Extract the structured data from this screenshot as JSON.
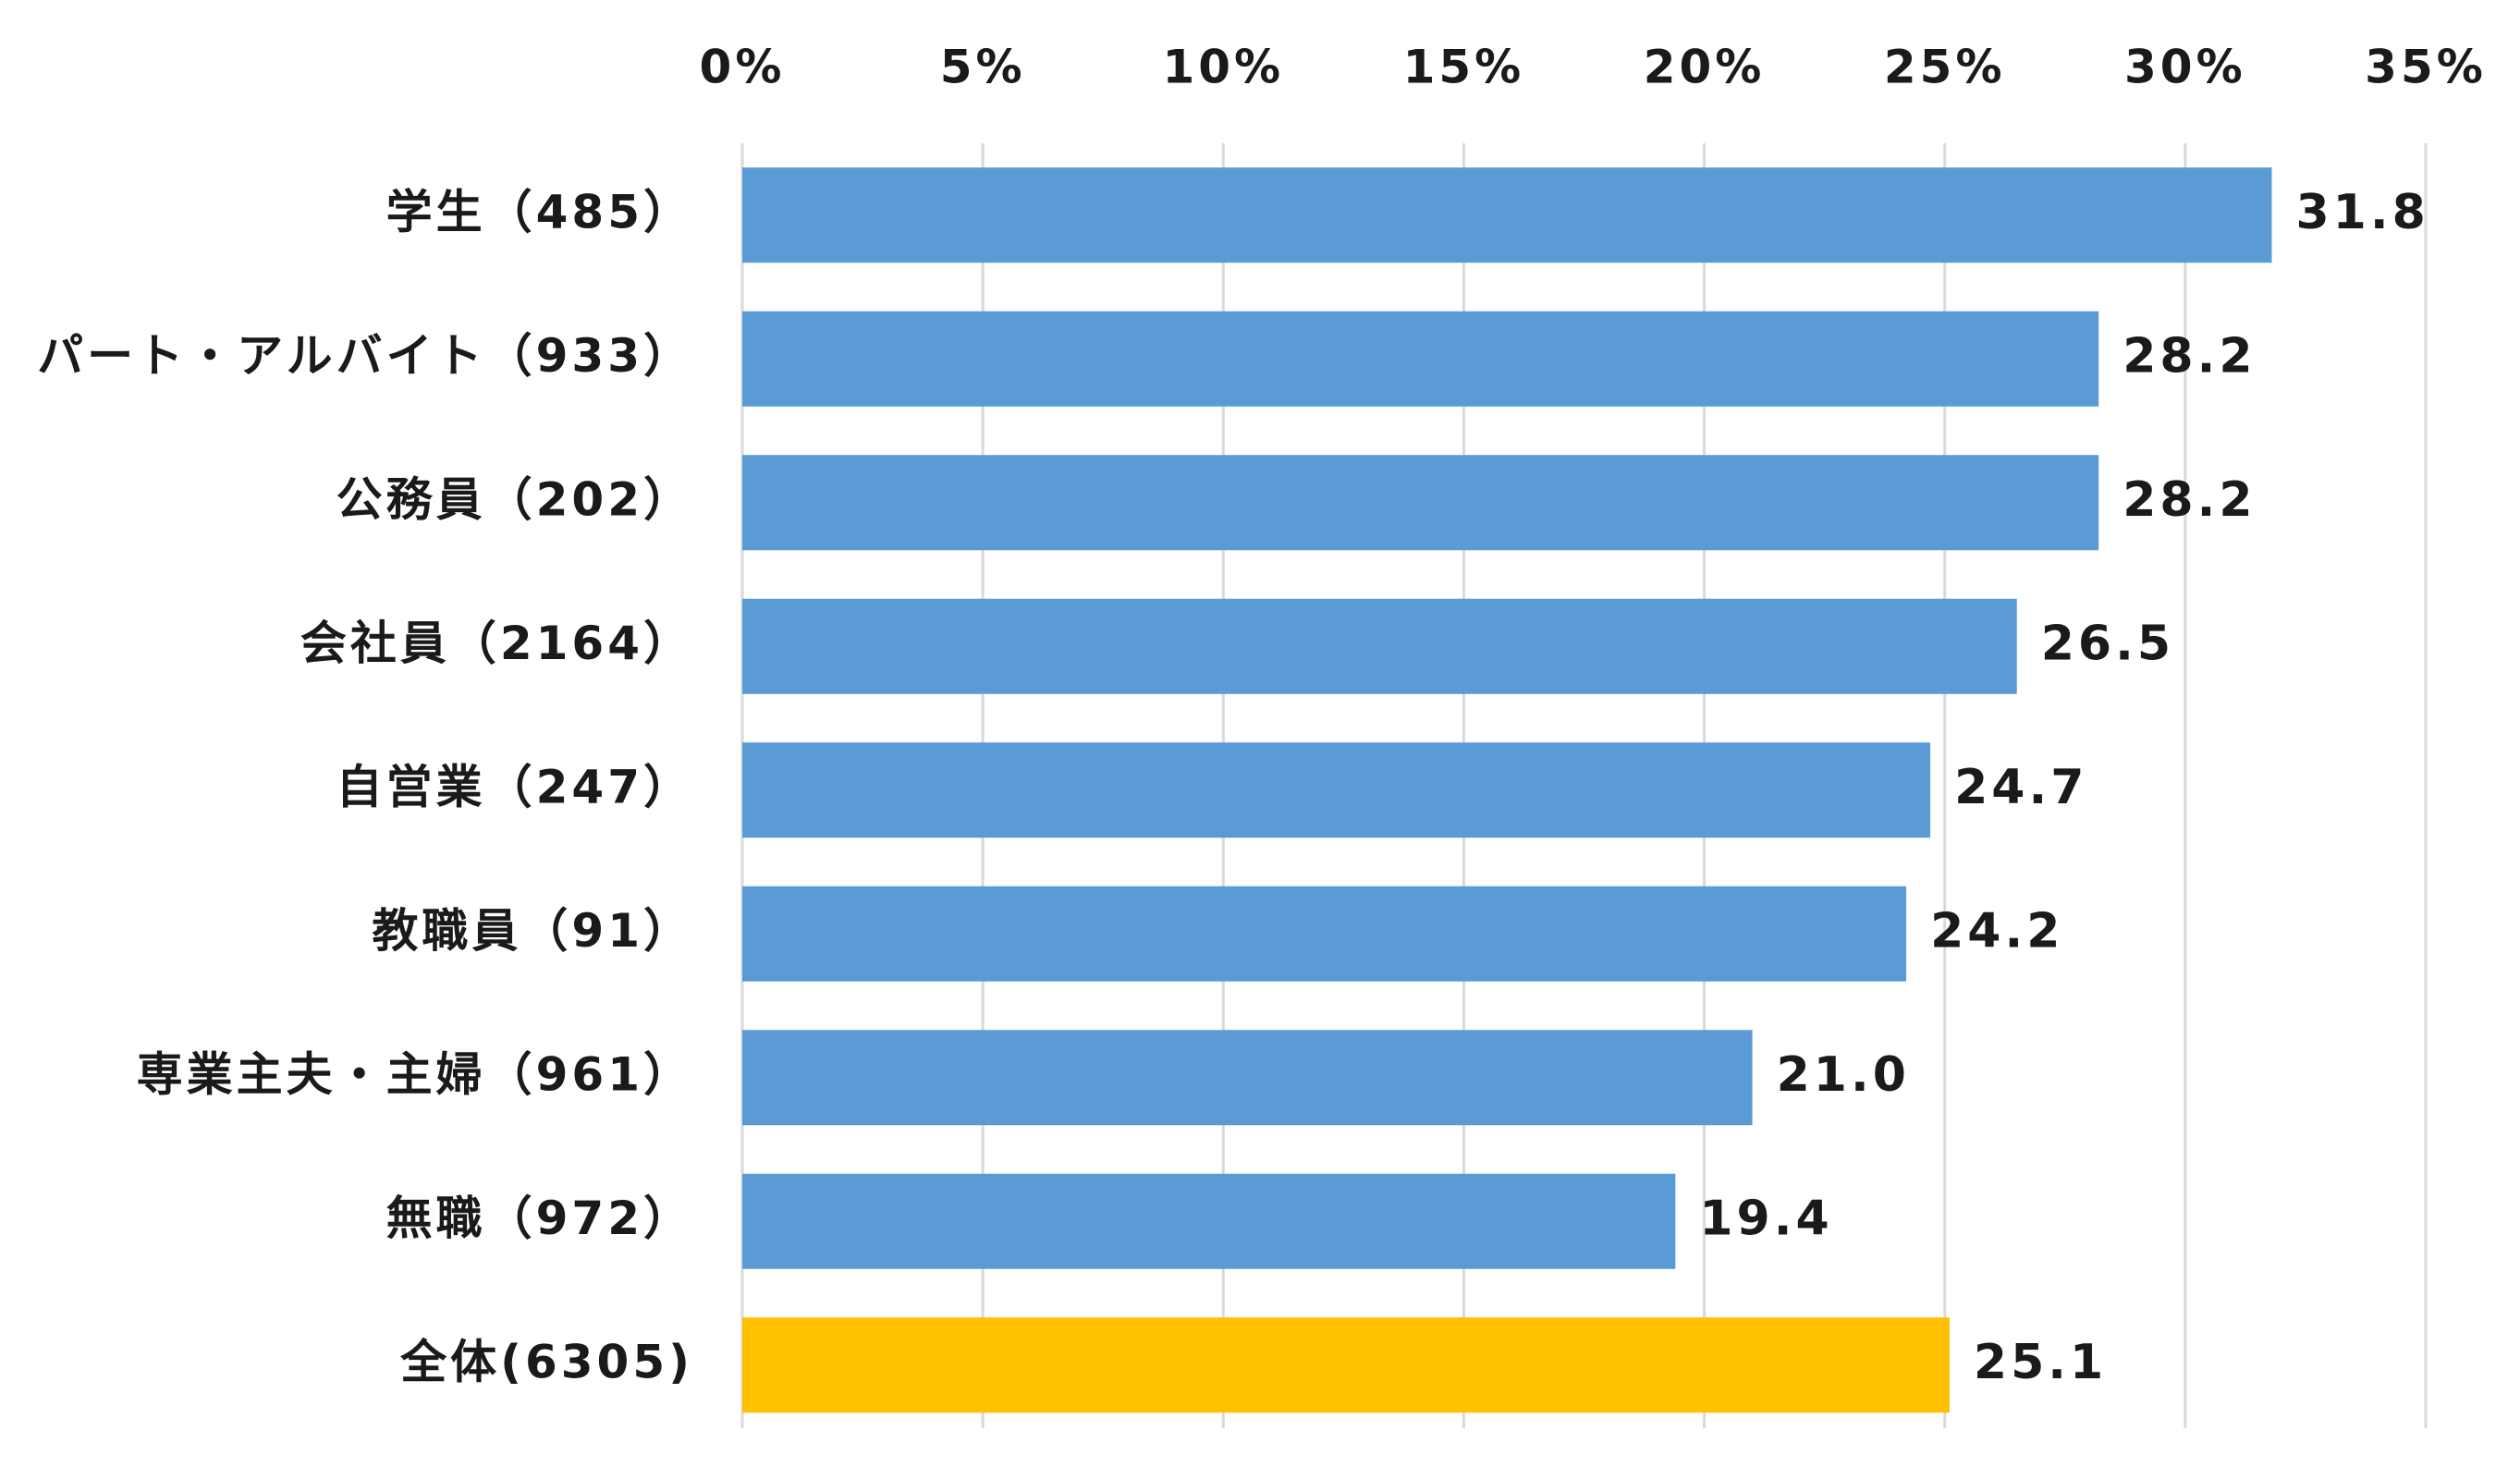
{
  "chart_data": {
    "type": "bar",
    "orientation": "horizontal",
    "title": "",
    "xlabel": "",
    "ylabel": "",
    "xlim": [
      0,
      35
    ],
    "x_ticks": [
      0,
      5,
      10,
      15,
      20,
      25,
      30,
      35
    ],
    "x_tick_labels": [
      "0%",
      "5%",
      "10%",
      "15%",
      "20%",
      "25%",
      "30%",
      "35%"
    ],
    "x_axis_position": "top",
    "grid": true,
    "categories": [
      "学生（485）",
      "パート・アルバイト（933）",
      "公務員（202）",
      "会社員（2164）",
      "自営業（247）",
      "教職員（91）",
      "専業主夫・主婦（961）",
      "無職（972）",
      "全体(6305)"
    ],
    "values": [
      31.8,
      28.2,
      28.2,
      26.5,
      24.7,
      24.2,
      21.0,
      19.4,
      25.1
    ],
    "value_labels": [
      "31.8",
      "28.2",
      "28.2",
      "26.5",
      "24.7",
      "24.2",
      "21.0",
      "19.4",
      "25.1"
    ],
    "bar_colors": [
      "#5b9bd5",
      "#5b9bd5",
      "#5b9bd5",
      "#5b9bd5",
      "#5b9bd5",
      "#5b9bd5",
      "#5b9bd5",
      "#5b9bd5",
      "#ffc000"
    ]
  }
}
